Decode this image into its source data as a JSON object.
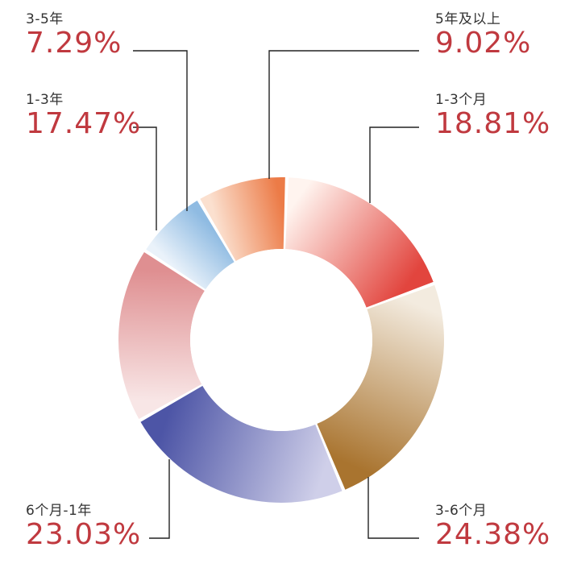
{
  "chart_data": {
    "type": "pie",
    "variant": "donut",
    "title": "",
    "unit": "%",
    "slices": [
      {
        "label": "5年及以上",
        "value": 9.02,
        "display": "9.02%",
        "color_from": "#fbe0cf",
        "color_to": "#ec7b47"
      },
      {
        "label": "1-3个月",
        "value": 18.81,
        "display": "18.81%",
        "color_from": "#fff4ef",
        "color_to": "#e2453e"
      },
      {
        "label": "3-6个月",
        "value": 24.38,
        "display": "24.38%",
        "color_from": "#f3ebdf",
        "color_to": "#a9742f"
      },
      {
        "label": "6个月-1年",
        "value": 23.03,
        "display": "23.03%",
        "color_from": "#cfcfe9",
        "color_to": "#4d55a6"
      },
      {
        "label": "1-3年",
        "value": 17.47,
        "display": "17.47%",
        "color_from": "#f8e6e6",
        "color_to": "#df8f91"
      },
      {
        "label": "3-5年",
        "value": 7.29,
        "display": "7.29%",
        "color_from": "#eaf2fa",
        "color_to": "#8fbbe2"
      }
    ],
    "label_color": "#c0393f"
  }
}
